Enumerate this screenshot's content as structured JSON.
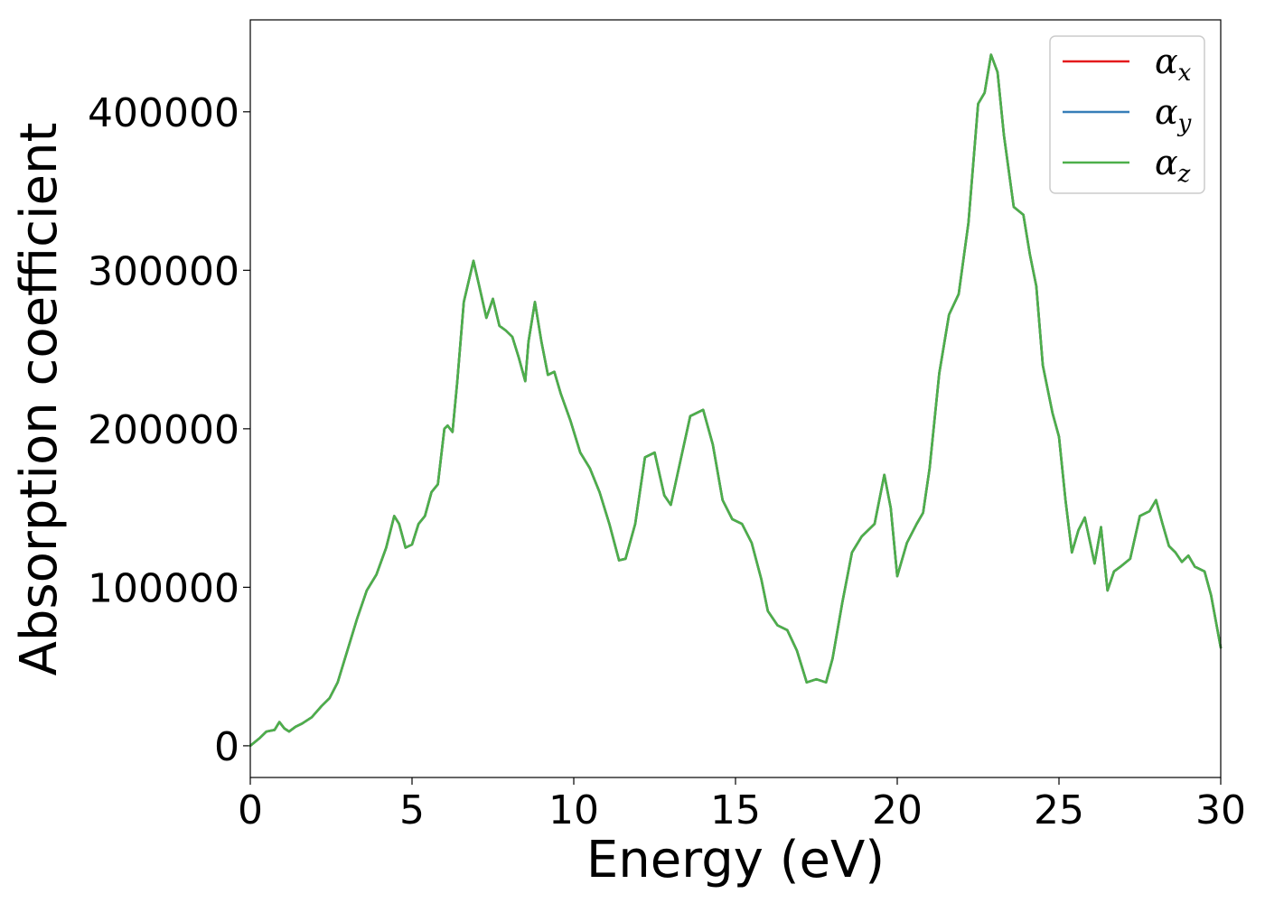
{
  "chart_data": {
    "type": "line",
    "title": "",
    "xlabel": "Energy (eV)",
    "ylabel": "Absorption coefficient",
    "xlim": [
      0,
      30
    ],
    "ylim": [
      -20000,
      458000
    ],
    "xticks": [
      0,
      5,
      10,
      15,
      20,
      25,
      30
    ],
    "yticks": [
      0,
      100000,
      200000,
      300000,
      400000
    ],
    "xtick_labels": [
      "0",
      "5",
      "10",
      "15",
      "20",
      "25",
      "30"
    ],
    "ytick_labels": [
      "0",
      "100000",
      "200000",
      "300000",
      "400000"
    ],
    "grid": false,
    "legend_position": "top-right",
    "series": [
      {
        "name": "α",
        "subscript": "x",
        "color": "#e41a1c"
      },
      {
        "name": "α",
        "subscript": "y",
        "color": "#377eb8"
      },
      {
        "name": "α",
        "subscript": "z",
        "color": "#4daf4a"
      }
    ],
    "x": [
      0,
      0.3,
      0.5,
      0.75,
      0.9,
      1.05,
      1.2,
      1.4,
      1.6,
      1.9,
      2.2,
      2.45,
      2.7,
      3.0,
      3.3,
      3.6,
      3.9,
      4.2,
      4.45,
      4.6,
      4.8,
      5.0,
      5.2,
      5.4,
      5.6,
      5.8,
      6.0,
      6.1,
      6.25,
      6.4,
      6.6,
      6.9,
      7.1,
      7.3,
      7.5,
      7.7,
      7.9,
      8.1,
      8.3,
      8.5,
      8.6,
      8.8,
      9.0,
      9.2,
      9.4,
      9.6,
      9.9,
      10.2,
      10.5,
      10.8,
      11.1,
      11.4,
      11.6,
      11.9,
      12.2,
      12.5,
      12.8,
      13.0,
      13.3,
      13.6,
      14.0,
      14.3,
      14.6,
      14.9,
      15.2,
      15.5,
      15.8,
      16.0,
      16.3,
      16.6,
      16.9,
      17.2,
      17.5,
      17.8,
      18.0,
      18.3,
      18.6,
      18.9,
      19.3,
      19.6,
      19.8,
      20.0,
      20.3,
      20.6,
      20.8,
      21.0,
      21.3,
      21.6,
      21.9,
      22.2,
      22.5,
      22.7,
      22.9,
      23.1,
      23.3,
      23.6,
      23.9,
      24.1,
      24.3,
      24.5,
      24.8,
      25.0,
      25.2,
      25.4,
      25.6,
      25.8,
      26.1,
      26.3,
      26.5,
      26.7,
      26.9,
      27.2,
      27.5,
      27.8,
      28.0,
      28.2,
      28.4,
      28.6,
      28.8,
      29.0,
      29.2,
      29.5,
      29.7,
      30.0
    ],
    "y": [
      0,
      5000,
      9000,
      10000,
      15000,
      11000,
      9000,
      12000,
      14000,
      18000,
      25000,
      30000,
      40000,
      60000,
      80000,
      98000,
      108000,
      125000,
      145000,
      140000,
      125000,
      127000,
      140000,
      145000,
      160000,
      165000,
      200000,
      202000,
      198000,
      230000,
      280000,
      306000,
      288000,
      270000,
      282000,
      265000,
      262000,
      258000,
      245000,
      230000,
      255000,
      280000,
      255000,
      234000,
      236000,
      222000,
      205000,
      185000,
      175000,
      160000,
      140000,
      117000,
      118000,
      140000,
      182000,
      185000,
      158000,
      152000,
      180000,
      208000,
      212000,
      190000,
      155000,
      143000,
      140000,
      128000,
      105000,
      85000,
      76000,
      73000,
      60000,
      40000,
      42000,
      40000,
      55000,
      90000,
      122000,
      132000,
      140000,
      171000,
      150000,
      107000,
      128000,
      140000,
      147000,
      175000,
      235000,
      272000,
      285000,
      330000,
      405000,
      412000,
      436000,
      425000,
      385000,
      340000,
      335000,
      310000,
      290000,
      240000,
      210000,
      195000,
      155000,
      122000,
      136000,
      144000,
      115000,
      138000,
      98000,
      110000,
      113000,
      118000,
      145000,
      148000,
      155000,
      140000,
      126000,
      122000,
      116000,
      120000,
      113000,
      110000,
      95000,
      62000
    ]
  }
}
